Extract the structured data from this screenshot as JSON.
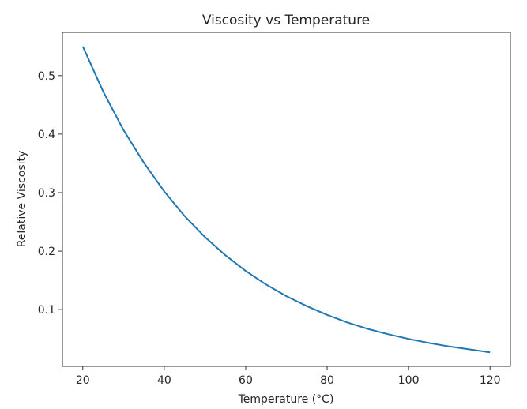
{
  "chart_data": {
    "type": "line",
    "title": "Viscosity vs Temperature",
    "xlabel": "Temperature (°C)",
    "ylabel": "Relative Viscosity",
    "xlim": [
      15,
      125
    ],
    "ylim": [
      0.003,
      0.574
    ],
    "xticks": [
      20,
      40,
      60,
      80,
      100,
      120
    ],
    "yticks": [
      0.1,
      0.2,
      0.3,
      0.4,
      0.5
    ],
    "xtick_labels": [
      "20",
      "40",
      "60",
      "80",
      "100",
      "120"
    ],
    "ytick_labels": [
      "0.1",
      "0.2",
      "0.3",
      "0.4",
      "0.5"
    ],
    "grid": false,
    "legend": null,
    "series": [
      {
        "name": "Relative Viscosity",
        "color": "#1f77b4",
        "x": [
          20,
          25,
          30,
          35,
          40,
          45,
          50,
          55,
          60,
          65,
          70,
          75,
          80,
          85,
          90,
          95,
          100,
          105,
          110,
          115,
          120
        ],
        "y": [
          0.55,
          0.473,
          0.407,
          0.351,
          0.302,
          0.26,
          0.224,
          0.193,
          0.166,
          0.143,
          0.123,
          0.106,
          0.091,
          0.078,
          0.067,
          0.058,
          0.05,
          0.043,
          0.037,
          0.032,
          0.027
        ]
      }
    ]
  }
}
